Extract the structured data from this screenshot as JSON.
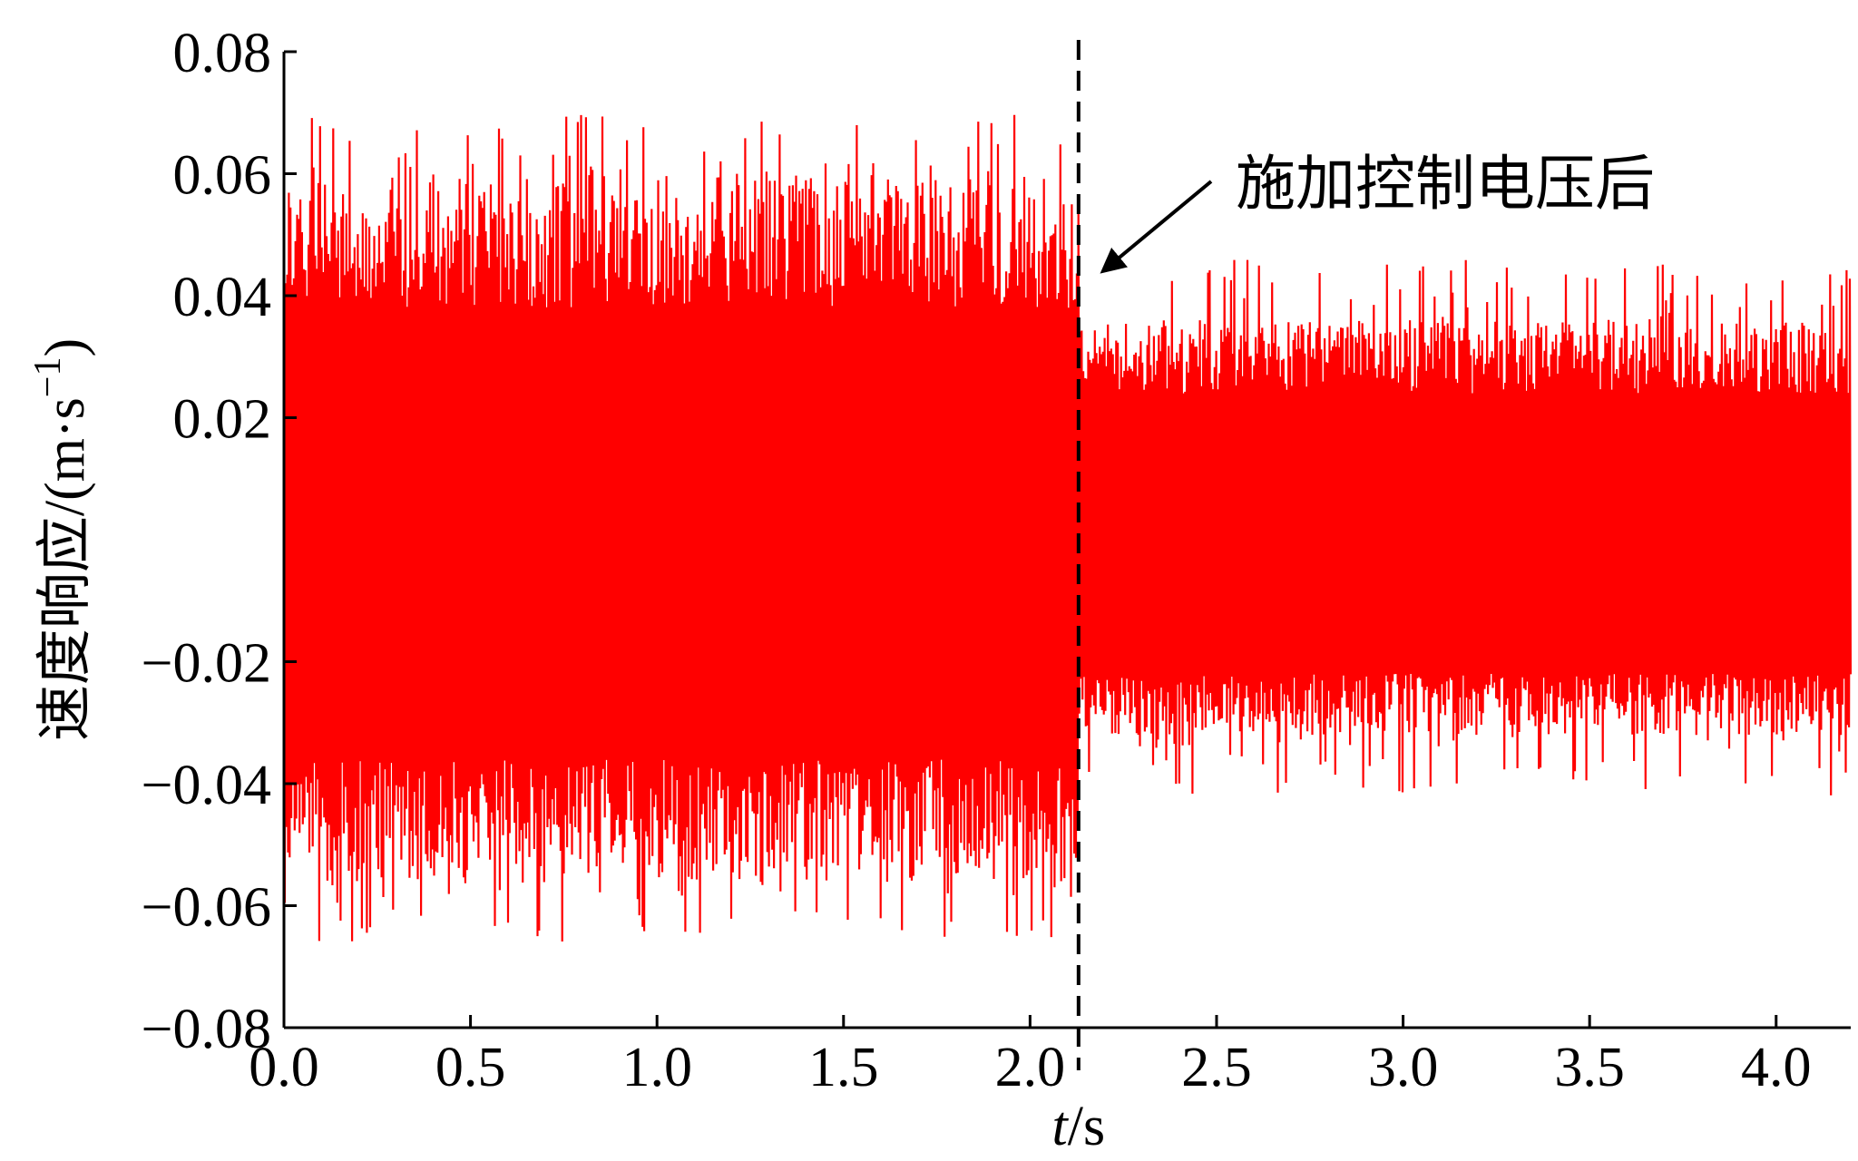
{
  "chart_data": {
    "type": "line",
    "title": "",
    "xlabel": "t/s",
    "xlabel_italic_part": "t",
    "xlabel_rest": "/s",
    "ylabel": "速度响应/(m·s⁻¹)",
    "ylabel_main": "速度响应/(m·s",
    "ylabel_sup": "−1",
    "ylabel_close": ")",
    "xlim": [
      0.0,
      4.2
    ],
    "ylim": [
      -0.08,
      0.08
    ],
    "x_ticks": [
      0.0,
      0.5,
      1.0,
      1.5,
      2.0,
      2.5,
      3.0,
      3.5,
      4.0
    ],
    "x_tick_labels": [
      "0.0",
      "0.5",
      "1.0",
      "1.5",
      "2.0",
      "2.5",
      "3.0",
      "3.5",
      "4.0"
    ],
    "y_ticks": [
      0.08,
      0.06,
      0.04,
      0.02,
      -0.02,
      -0.04,
      -0.06,
      -0.08
    ],
    "y_tick_labels": [
      "0.08",
      "0.06",
      "0.04",
      "0.02",
      "−0.02",
      "−0.04",
      "−0.06",
      "−0.08"
    ],
    "grid": false,
    "legend": "none",
    "series": [
      {
        "color": "#ff0000",
        "description_segments": [
          {
            "x_range": [
              0.0,
              2.13
            ],
            "center": 0.0,
            "envelope_max": 0.07,
            "envelope_min": -0.066
          },
          {
            "x_range": [
              2.13,
              4.2
            ],
            "center": 0.0,
            "envelope_max": 0.046,
            "envelope_min": -0.042
          }
        ]
      }
    ],
    "vertical_line": {
      "x": 2.13,
      "style": "dashed",
      "color": "#000000"
    },
    "annotation": {
      "text": "施加控制电压后",
      "arrow_target": {
        "x": 2.13,
        "y": 0.035
      }
    }
  }
}
